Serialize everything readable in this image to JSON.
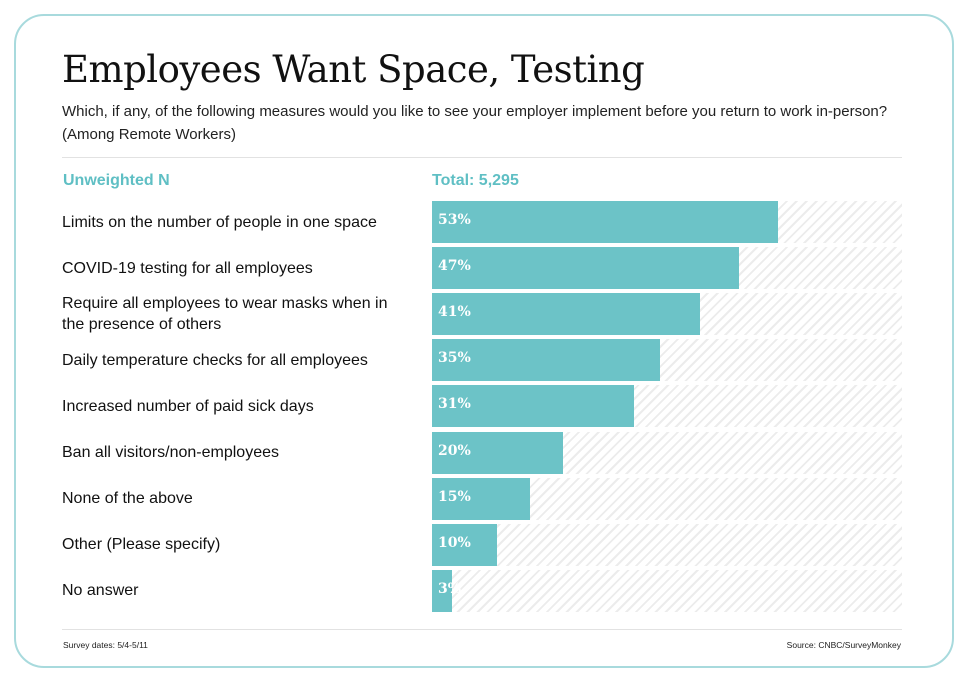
{
  "title": "Employees Want Space, Testing",
  "subtitle": "Which, if any, of the following measures would you like to see your employer implement before you return to work in-person? (Among Remote Workers)",
  "column_headers": {
    "left": "Unweighted N",
    "right": "Total: 5,295"
  },
  "footer": {
    "survey_dates": "Survey dates: 5/4-5/11",
    "source": "Source: CNBC/SurveyMonkey"
  },
  "colors": {
    "bar": "#6cc3c7",
    "accent": "#5fbfc4",
    "border": "#a8dadd"
  },
  "chart_data": {
    "type": "bar",
    "orientation": "horizontal",
    "title": "Employees Want Space, Testing",
    "categories": [
      "Limits on the number of people in one space",
      "COVID-19 testing for all employees",
      "Require all employees to wear masks when in the presence of others",
      "Daily temperature checks for all employees",
      "Increased number of paid sick days",
      "Ban all visitors/non-employees",
      "None of the above",
      "Other (Please specify)",
      "No answer"
    ],
    "values": [
      53,
      47,
      41,
      35,
      31,
      20,
      15,
      10,
      3
    ],
    "value_labels": [
      "53%",
      "47%",
      "41%",
      "35%",
      "31%",
      "20%",
      "15%",
      "10%",
      "3%"
    ],
    "unit": "%",
    "xlim": [
      0,
      72
    ],
    "xlabel": "",
    "ylabel": ""
  }
}
